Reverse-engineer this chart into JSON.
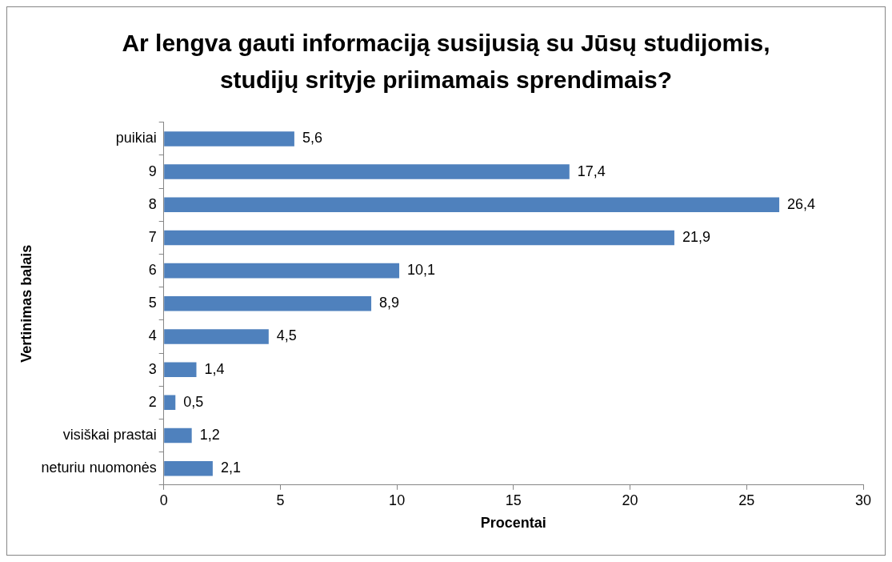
{
  "chart_data": {
    "type": "bar",
    "orientation": "horizontal",
    "title": "Ar lengva gauti informaciją susijusią su Jūsų studijomis, studijų srityje priimamais sprendimais?",
    "xlabel": "Procentai",
    "ylabel": "Vertinimas balais",
    "categories": [
      "puikiai",
      "9",
      "8",
      "7",
      "6",
      "5",
      "4",
      "3",
      "2",
      "visiškai prastai",
      "neturiu nuomonės"
    ],
    "values": [
      5.6,
      17.4,
      26.4,
      21.9,
      10.1,
      8.9,
      4.5,
      1.4,
      0.5,
      1.2,
      2.1
    ],
    "value_labels": [
      "5,6",
      "17,4",
      "26,4",
      "21,9",
      "10,1",
      "8,9",
      "4,5",
      "1,4",
      "0,5",
      "1,2",
      "2,1"
    ],
    "color": "#4f81bd",
    "xlim": [
      0,
      30
    ],
    "xticks": [
      0,
      5,
      10,
      15,
      20,
      25,
      30
    ],
    "grid": false,
    "legend": false
  }
}
